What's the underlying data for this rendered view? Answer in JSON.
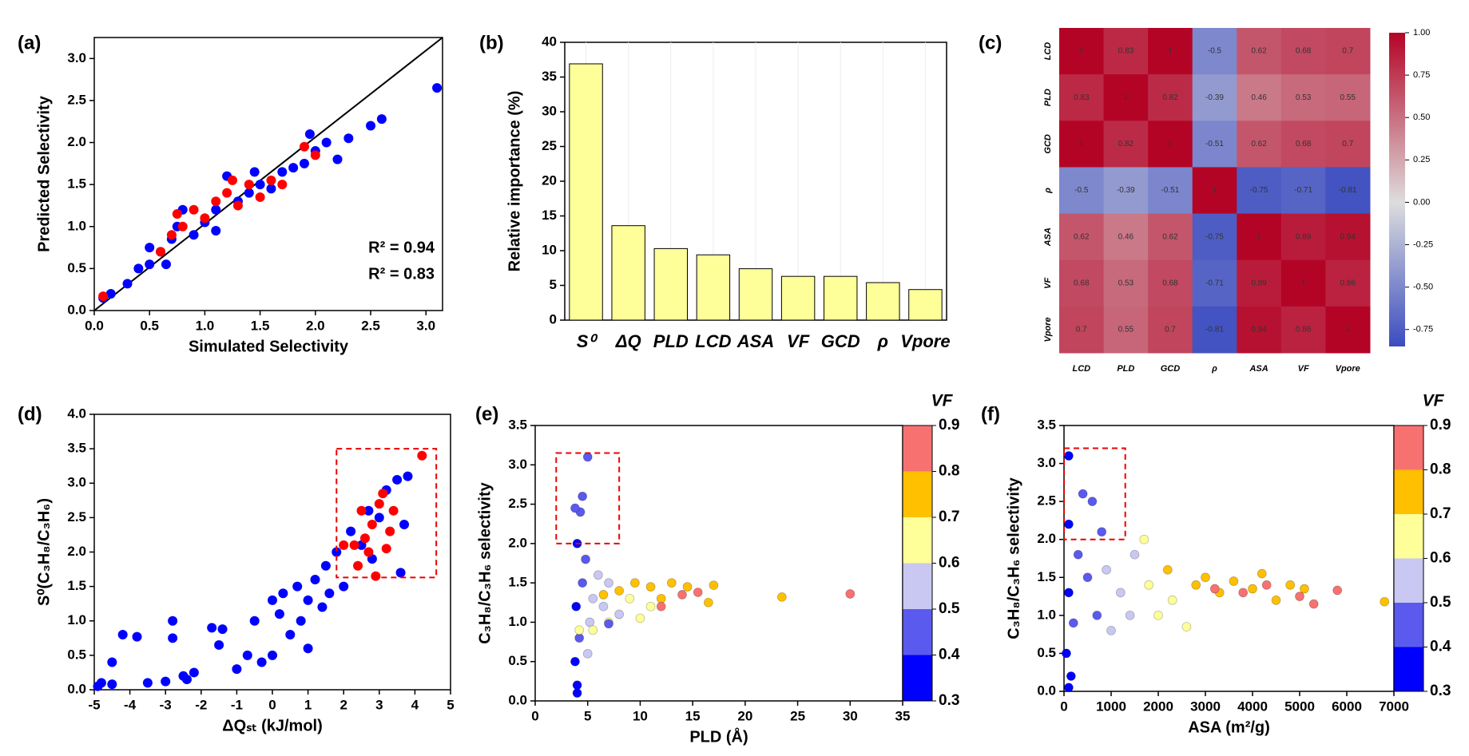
{
  "chart_data": [
    {
      "type": "scatter",
      "panel_label": "(a)",
      "xlabel": "Simulated Selectivity",
      "ylabel": "Predicted Selectivity",
      "xlim": [
        0,
        3.15
      ],
      "ylim": [
        0,
        3.25
      ],
      "xticks": [
        {
          "value": 0,
          "label": "0.0"
        },
        {
          "value": 0.5,
          "label": "0.5"
        },
        {
          "value": 1,
          "label": "1.0"
        },
        {
          "value": 1.5,
          "label": "1.5"
        },
        {
          "value": 2,
          "label": "2.0"
        },
        {
          "value": 2.5,
          "label": "2.5"
        },
        {
          "value": 3,
          "label": "3.0"
        }
      ],
      "yticks": [
        {
          "value": 0,
          "label": "0.0"
        },
        {
          "value": 0.5,
          "label": "0.5"
        },
        {
          "value": 1,
          "label": "1.0"
        },
        {
          "value": 1.5,
          "label": "1.5"
        },
        {
          "value": 2,
          "label": "2.0"
        },
        {
          "value": 2.5,
          "label": "2.5"
        },
        {
          "value": 3,
          "label": "3.0"
        }
      ],
      "annotations": [
        {
          "text": "R² = 0.94",
          "color": "#1f1fe0"
        },
        {
          "text": "R² = 0.83",
          "color": "#ee1c1c"
        }
      ],
      "series": [
        {
          "color": "#0000ff",
          "x": [
            0.08,
            0.15,
            0.3,
            0.4,
            0.5,
            0.5,
            0.6,
            0.7,
            0.75,
            0.8,
            0.9,
            1.0,
            1.1,
            1.2,
            1.3,
            1.4,
            1.5,
            1.6,
            1.7,
            1.8,
            1.9,
            2.0,
            2.1,
            2.2,
            2.3,
            2.5,
            2.6,
            3.1,
            1.45,
            0.65,
            1.95,
            1.1
          ],
          "values": [
            0.15,
            0.2,
            0.32,
            0.5,
            0.55,
            0.75,
            0.7,
            0.85,
            1.0,
            1.2,
            0.9,
            1.05,
            1.2,
            1.6,
            1.3,
            1.4,
            1.5,
            1.45,
            1.65,
            1.7,
            1.75,
            1.9,
            2.0,
            1.8,
            2.05,
            2.2,
            2.28,
            2.65,
            1.65,
            0.55,
            2.1,
            0.95
          ]
        },
        {
          "color": "#ff0000",
          "x": [
            0.08,
            0.6,
            0.7,
            0.8,
            0.9,
            1.0,
            1.1,
            1.2,
            1.3,
            1.4,
            1.5,
            1.6,
            1.7,
            1.9,
            2.0,
            0.75,
            1.25
          ],
          "values": [
            0.17,
            0.7,
            0.9,
            1.0,
            1.2,
            1.1,
            1.3,
            1.4,
            1.25,
            1.5,
            1.35,
            1.55,
            1.5,
            1.95,
            1.85,
            1.15,
            1.55
          ]
        }
      ]
    },
    {
      "type": "bar",
      "panel_label": "(b)",
      "ylabel": "Relative importance (%)",
      "color": "#ffff99",
      "categories": [
        "S⁰",
        "ΔQ",
        "PLD",
        "LCD",
        "ASA",
        "VF",
        "GCD",
        "ρ",
        "Vpore"
      ],
      "values": [
        36.9,
        13.6,
        10.3,
        9.4,
        7.4,
        6.3,
        6.3,
        5.4,
        4.4
      ],
      "ylim": [
        0,
        40
      ],
      "yticks": [
        0,
        5,
        10,
        15,
        20,
        25,
        30,
        35,
        40
      ]
    },
    {
      "type": "heatmap",
      "panel_label": "(c)",
      "rows": [
        "LCD",
        "PLD",
        "GCD",
        "ρ",
        "ASA",
        "VF",
        "Vpore"
      ],
      "columns": [
        "LCD",
        "PLD",
        "GCD",
        "ρ",
        "ASA",
        "VF",
        "Vpore"
      ],
      "values": [
        [
          1,
          0.83,
          1,
          -0.5,
          0.62,
          0.68,
          0.7
        ],
        [
          0.83,
          1,
          0.82,
          -0.39,
          0.46,
          0.53,
          0.55
        ],
        [
          1,
          0.82,
          1,
          -0.51,
          0.62,
          0.68,
          0.7
        ],
        [
          -0.5,
          -0.39,
          -0.51,
          1,
          -0.75,
          -0.71,
          -0.81
        ],
        [
          0.62,
          0.46,
          0.62,
          -0.75,
          1,
          0.89,
          0.94
        ],
        [
          0.68,
          0.53,
          0.68,
          -0.71,
          0.89,
          1,
          0.86
        ],
        [
          0.7,
          0.55,
          0.7,
          -0.81,
          0.94,
          0.86,
          1
        ]
      ],
      "cmap": [
        "#3b4cc0",
        "#dddddd",
        "#b40426"
      ],
      "zlim": [
        -0.85,
        1
      ],
      "colorbar_ticks": [
        {
          "value": 1,
          "label": "1.00"
        },
        {
          "value": 0.75,
          "label": "0.75"
        },
        {
          "value": 0.5,
          "label": "0.50"
        },
        {
          "value": 0.25,
          "label": "0.25"
        },
        {
          "value": 0,
          "label": "0.00"
        },
        {
          "value": -0.25,
          "label": "-0.25"
        },
        {
          "value": -0.5,
          "label": "-0.50"
        },
        {
          "value": -0.75,
          "label": "-0.75"
        }
      ]
    },
    {
      "type": "scatter",
      "panel_label": "(d)",
      "xlabel": "ΔQₛₜ (kJ/mol)",
      "ylabel": "S⁰(C₃H₈/C₃H₆)",
      "xlim": [
        -5,
        5
      ],
      "ylim": [
        0,
        4
      ],
      "xticks": [
        -5,
        -4,
        -3,
        -2,
        -1,
        0,
        1,
        2,
        3,
        4,
        5
      ],
      "yticks": [
        {
          "value": 0,
          "label": "0.0"
        },
        {
          "value": 0.5,
          "label": "0.5"
        },
        {
          "value": 1,
          "label": "1.0"
        },
        {
          "value": 1.5,
          "label": "1.5"
        },
        {
          "value": 2,
          "label": "2.0"
        },
        {
          "value": 2.5,
          "label": "2.5"
        },
        {
          "value": 3,
          "label": "3.0"
        },
        {
          "value": 3.5,
          "label": "3.5"
        },
        {
          "value": 4,
          "label": "4.0"
        }
      ],
      "highlight_box": {
        "x": [
          1.8,
          4.6
        ],
        "y": [
          1.63,
          3.5
        ]
      },
      "series": [
        {
          "color": "#0000ff",
          "x": [
            -4.9,
            -4.8,
            -4.5,
            -4.5,
            -4.2,
            -3.8,
            -3.5,
            -3.0,
            -2.8,
            -2.8,
            -2.5,
            -2.4,
            -2.2,
            -1.7,
            -1.5,
            -1.4,
            -1.0,
            -0.7,
            -0.5,
            -0.3,
            0,
            0,
            0.2,
            0.3,
            0.5,
            0.7,
            0.8,
            1,
            1,
            1.2,
            1.4,
            1.5,
            1.6,
            1.8,
            2,
            2.2,
            2.5,
            2.7,
            3,
            3.2,
            3.5,
            3.8,
            3.7,
            3.6,
            2.8
          ],
          "values": [
            0.05,
            0.1,
            0.4,
            0.08,
            0.8,
            0.77,
            0.1,
            0.12,
            1.0,
            0.75,
            0.2,
            0.15,
            0.25,
            0.9,
            0.65,
            0.88,
            0.3,
            0.5,
            1.0,
            0.4,
            0.5,
            1.3,
            1.1,
            1.4,
            0.8,
            1.5,
            1.0,
            1.3,
            0.6,
            1.6,
            1.2,
            1.8,
            1.4,
            2.0,
            1.5,
            2.3,
            2.1,
            2.6,
            2.5,
            2.9,
            3.05,
            3.1,
            2.4,
            1.7,
            1.9
          ]
        },
        {
          "color": "#ff0000",
          "x": [
            4.2,
            3,
            3.1,
            2.5,
            2.8,
            2.3,
            2.6,
            3.3,
            2.4,
            2.9,
            2.7,
            3.4,
            2,
            3.2
          ],
          "values": [
            3.4,
            2.7,
            2.85,
            2.6,
            2.4,
            2.1,
            2.2,
            2.3,
            1.8,
            1.65,
            2.0,
            2.6,
            2.1,
            2.05
          ]
        }
      ]
    },
    {
      "type": "scatter",
      "panel_label": "(e)",
      "xlabel": "PLD (Å)",
      "ylabel": "C₃H₈/C₃H₆ selectivity",
      "xlim": [
        0,
        35
      ],
      "ylim": [
        0,
        3.5
      ],
      "xticks": [
        0,
        5,
        10,
        15,
        20,
        25,
        30,
        35
      ],
      "yticks": [
        {
          "value": 0,
          "label": "0.0"
        },
        {
          "value": 0.5,
          "label": "0.5"
        },
        {
          "value": 1,
          "label": "1.0"
        },
        {
          "value": 1.5,
          "label": "1.5"
        },
        {
          "value": 2,
          "label": "2.0"
        },
        {
          "value": 2.5,
          "label": "2.5"
        },
        {
          "value": 3,
          "label": "3.0"
        },
        {
          "value": 3.5,
          "label": "3.5"
        }
      ],
      "highlight_box": {
        "x": [
          2,
          8
        ],
        "y": [
          2,
          3.15
        ]
      },
      "colorbar": {
        "title": "VF",
        "ticks": [
          0.3,
          0.4,
          0.5,
          0.6,
          0.7,
          0.8,
          0.9
        ],
        "colors": [
          "#0000ff",
          "#5a5aee",
          "#c8c8f2",
          "#ffff99",
          "#ffc000",
          "#f87171"
        ]
      },
      "series": [
        {
          "x": [
            4,
            4,
            3.8,
            4.2,
            3.9,
            4.5,
            4,
            4.3,
            4.5,
            5,
            3.8,
            4.8,
            5.2,
            5.5,
            5,
            6,
            6.5,
            7,
            8,
            4.2,
            5.5,
            7,
            9,
            10,
            11,
            6.5,
            8,
            9.5,
            11,
            12,
            13,
            14.5,
            16.5,
            17,
            23.5,
            12,
            14,
            15.5,
            30,
            7
          ],
          "values": [
            0.1,
            0.2,
            0.5,
            0.8,
            1.2,
            1.5,
            2.0,
            2.4,
            2.6,
            3.1,
            2.45,
            1.8,
            1.0,
            1.3,
            0.6,
            1.6,
            1.2,
            1.5,
            1.1,
            0.9,
            0.9,
            1.0,
            1.3,
            1.05,
            1.2,
            1.35,
            1.4,
            1.5,
            1.45,
            1.3,
            1.5,
            1.45,
            1.25,
            1.47,
            1.32,
            1.2,
            1.35,
            1.38,
            1.36,
            0.98
          ],
          "c": [
            0.35,
            0.35,
            0.38,
            0.42,
            0.38,
            0.45,
            0.38,
            0.42,
            0.45,
            0.45,
            0.4,
            0.48,
            0.55,
            0.52,
            0.55,
            0.55,
            0.57,
            0.58,
            0.56,
            0.62,
            0.62,
            0.65,
            0.63,
            0.62,
            0.66,
            0.72,
            0.75,
            0.75,
            0.72,
            0.74,
            0.76,
            0.75,
            0.75,
            0.72,
            0.75,
            0.82,
            0.85,
            0.82,
            0.85,
            0.45
          ]
        }
      ]
    },
    {
      "type": "scatter",
      "panel_label": "(f)",
      "xlabel": "ASA (m²/g)",
      "ylabel": "C₃H₈/C₃H₆ selectivity",
      "xlim": [
        0,
        7000
      ],
      "ylim": [
        0,
        3.5
      ],
      "xticks": [
        0,
        1000,
        2000,
        3000,
        4000,
        5000,
        6000,
        7000
      ],
      "yticks": [
        {
          "value": 0,
          "label": "0.0"
        },
        {
          "value": 0.5,
          "label": "0.5"
        },
        {
          "value": 1,
          "label": "1.0"
        },
        {
          "value": 1.5,
          "label": "1.5"
        },
        {
          "value": 2,
          "label": "2.0"
        },
        {
          "value": 2.5,
          "label": "2.5"
        },
        {
          "value": 3,
          "label": "3.0"
        },
        {
          "value": 3.5,
          "label": "3.5"
        }
      ],
      "highlight_box": {
        "x": [
          0,
          1300
        ],
        "y": [
          2,
          3.2
        ]
      },
      "colorbar": {
        "title": "VF",
        "ticks": [
          0.3,
          0.4,
          0.5,
          0.6,
          0.7,
          0.8,
          0.9
        ],
        "colors": [
          "#0000ff",
          "#5a5aee",
          "#c8c8f2",
          "#ffff99",
          "#ffc000",
          "#f87171"
        ]
      },
      "series": [
        {
          "x": [
            100,
            150,
            50,
            200,
            100,
            300,
            100,
            100,
            400,
            600,
            800,
            500,
            700,
            900,
            1200,
            1500,
            1000,
            1400,
            1800,
            1700,
            2000,
            2300,
            2600,
            2200,
            2800,
            3000,
            3300,
            3600,
            4000,
            4200,
            4500,
            4800,
            5100,
            6800,
            3200,
            3800,
            4300,
            5000,
            5300,
            5800
          ],
          "values": [
            0.05,
            0.2,
            0.5,
            0.9,
            1.3,
            1.8,
            2.2,
            3.1,
            2.6,
            2.5,
            2.1,
            1.5,
            1.0,
            1.6,
            1.3,
            1.8,
            0.8,
            1.0,
            1.4,
            2.0,
            1.0,
            1.2,
            0.85,
            1.6,
            1.4,
            1.5,
            1.3,
            1.45,
            1.35,
            1.55,
            1.2,
            1.4,
            1.35,
            1.18,
            1.35,
            1.3,
            1.4,
            1.25,
            1.15,
            1.33
          ],
          "c": [
            0.35,
            0.35,
            0.38,
            0.4,
            0.38,
            0.42,
            0.38,
            0.35,
            0.45,
            0.45,
            0.48,
            0.45,
            0.45,
            0.55,
            0.55,
            0.55,
            0.55,
            0.58,
            0.62,
            0.62,
            0.63,
            0.65,
            0.62,
            0.72,
            0.74,
            0.75,
            0.72,
            0.75,
            0.76,
            0.74,
            0.72,
            0.75,
            0.73,
            0.72,
            0.85,
            0.83,
            0.85,
            0.82,
            0.85,
            0.85
          ]
        }
      ]
    }
  ]
}
